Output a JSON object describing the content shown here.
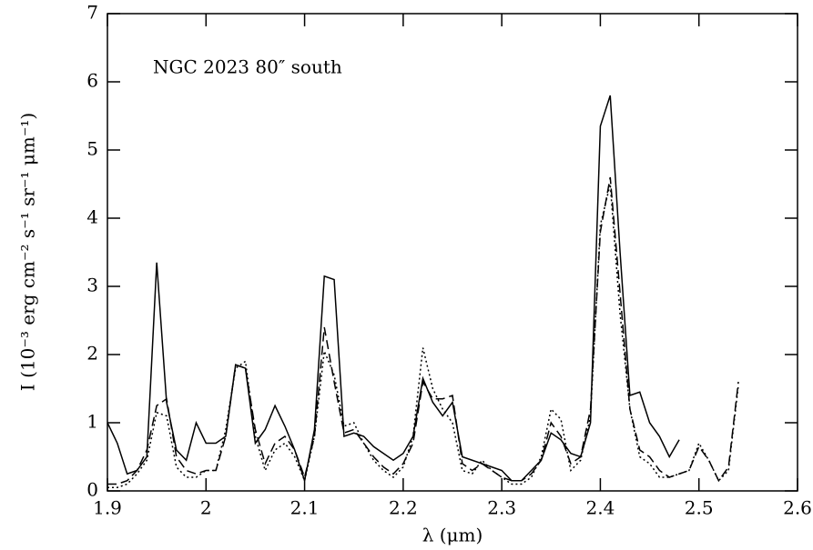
{
  "chart_data": {
    "type": "line",
    "annotation": "NGC 2023 80″ south",
    "xlabel": "λ (μm)",
    "ylabel": "I (10⁻³ erg cm⁻² s⁻¹ sr⁻¹ μm⁻¹)",
    "x": [
      1.9,
      1.91,
      1.92,
      1.93,
      1.94,
      1.95,
      1.96,
      1.97,
      1.98,
      1.99,
      2.0,
      2.01,
      2.02,
      2.03,
      2.04,
      2.05,
      2.06,
      2.07,
      2.08,
      2.09,
      2.1,
      2.11,
      2.12,
      2.13,
      2.14,
      2.15,
      2.16,
      2.17,
      2.18,
      2.19,
      2.2,
      2.21,
      2.22,
      2.23,
      2.24,
      2.25,
      2.26,
      2.27,
      2.28,
      2.29,
      2.3,
      2.31,
      2.32,
      2.33,
      2.34,
      2.35,
      2.36,
      2.37,
      2.38,
      2.39,
      2.4,
      2.41,
      2.42,
      2.43,
      2.44,
      2.45,
      2.46,
      2.47,
      2.48,
      2.49,
      2.5,
      2.51,
      2.52,
      2.53,
      2.54
    ],
    "series": [
      {
        "color": "#000000",
        "dash": "solid",
        "values": [
          1.0,
          0.7,
          0.25,
          0.3,
          0.5,
          3.35,
          1.3,
          0.6,
          0.45,
          1.0,
          0.7,
          0.7,
          0.8,
          1.85,
          1.8,
          0.7,
          0.9,
          1.25,
          0.95,
          0.6,
          0.15,
          0.9,
          3.15,
          3.1,
          0.8,
          0.85,
          0.8,
          0.65,
          0.55,
          0.45,
          0.55,
          0.8,
          1.65,
          1.3,
          1.1,
          1.3,
          0.5,
          0.45,
          0.4,
          0.35,
          0.3,
          0.15,
          0.15,
          0.3,
          0.45,
          0.85,
          0.75,
          0.55,
          0.5,
          1.0,
          5.35,
          5.8,
          3.5,
          1.4,
          1.45,
          1.0,
          0.8,
          0.5,
          0.75,
          null,
          null,
          null,
          null,
          null,
          null
        ]
      },
      {
        "color": "#000000",
        "dash": "dashed",
        "values": [
          0.1,
          0.1,
          0.15,
          0.3,
          0.6,
          1.25,
          1.35,
          0.5,
          0.3,
          0.25,
          0.3,
          0.3,
          0.8,
          1.85,
          1.8,
          0.9,
          0.4,
          0.7,
          0.8,
          0.6,
          0.2,
          0.8,
          2.4,
          1.6,
          0.85,
          0.9,
          0.7,
          0.5,
          0.35,
          0.25,
          0.4,
          0.7,
          1.6,
          1.35,
          1.35,
          1.4,
          0.4,
          0.3,
          0.4,
          0.3,
          0.2,
          0.15,
          0.15,
          0.25,
          0.45,
          1.0,
          0.8,
          0.4,
          0.5,
          1.2,
          3.8,
          4.6,
          2.9,
          1.2,
          0.6,
          0.5,
          0.3,
          0.2,
          0.25,
          0.3,
          0.65,
          0.45,
          0.15,
          0.35,
          1.6
        ]
      },
      {
        "color": "#000000",
        "dash": "dotted",
        "values": [
          0.05,
          0.05,
          0.1,
          0.25,
          0.45,
          1.15,
          1.1,
          0.35,
          0.2,
          0.2,
          0.3,
          0.3,
          0.9,
          1.8,
          1.9,
          0.8,
          0.3,
          0.6,
          0.7,
          0.5,
          0.15,
          0.8,
          2.05,
          1.7,
          0.95,
          1.0,
          0.7,
          0.45,
          0.3,
          0.2,
          0.35,
          0.8,
          2.1,
          1.5,
          1.2,
          1.0,
          0.3,
          0.25,
          0.45,
          0.3,
          0.2,
          0.1,
          0.1,
          0.2,
          0.5,
          1.2,
          1.05,
          0.3,
          0.45,
          1.1,
          3.9,
          4.5,
          2.6,
          1.2,
          0.5,
          0.4,
          0.2,
          0.2,
          0.25,
          0.3,
          0.7,
          0.45,
          0.15,
          0.3,
          1.55
        ]
      }
    ],
    "xlim": [
      1.9,
      2.6
    ],
    "xticks": [
      1.9,
      2,
      2.1,
      2.2,
      2.3,
      2.4,
      2.5,
      2.6
    ],
    "ylim": [
      0,
      7
    ],
    "yticks": [
      0,
      1,
      2,
      3,
      4,
      5,
      6,
      7
    ]
  }
}
